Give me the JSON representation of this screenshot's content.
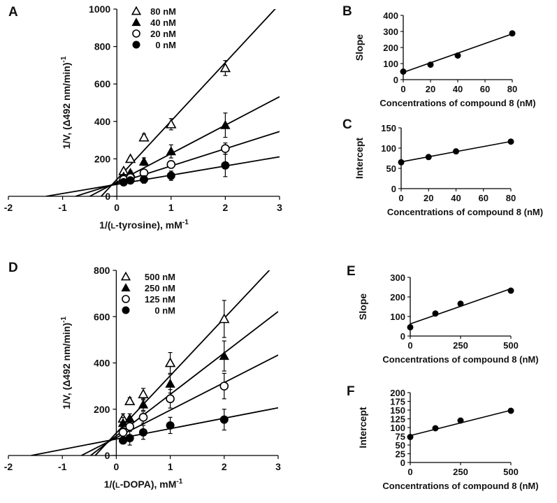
{
  "chart_data": [
    {
      "panel": "A",
      "type": "scatter",
      "xlabel": "1/(L-tyrosine), mM-1",
      "xlabel_parts": [
        "1/(",
        "L",
        "-tyrosine), mM",
        "-1"
      ],
      "ylabel": "1/V, (Δ492 nm/min)-1",
      "ylabel_parts": [
        "1/V, (Δ492 nm/min)",
        "-1"
      ],
      "xlim": [
        -2,
        3
      ],
      "ylim": [
        0,
        1000
      ],
      "xticks": [
        "-2",
        "-1",
        "0",
        "1",
        "2",
        "3"
      ],
      "yticks": [
        "0",
        "200",
        "400",
        "600",
        "800",
        "1000"
      ],
      "legend": [
        "80 nM",
        "40 nM",
        "20 nM",
        "0 nM"
      ],
      "series": [
        {
          "name": "80 nM",
          "marker": "open-triangle",
          "x": [
            0.125,
            0.25,
            0.5,
            1,
            2
          ],
          "y": [
            135,
            200,
            315,
            385,
            685
          ],
          "err": [
            10,
            10,
            18,
            30,
            40
          ],
          "fit": [
            90,
            312
          ]
        },
        {
          "name": "40 nM",
          "marker": "filled-triangle",
          "x": [
            0.125,
            0.25,
            0.5,
            1,
            2
          ],
          "y": [
            105,
            125,
            185,
            240,
            380
          ],
          "err": [
            10,
            10,
            20,
            35,
            65
          ],
          "fit": [
            76,
            152
          ]
        },
        {
          "name": "20 nM",
          "marker": "open-circle",
          "x": [
            0.125,
            0.25,
            0.5,
            1,
            2
          ],
          "y": [
            90,
            100,
            125,
            170,
            255
          ],
          "err": [
            8,
            8,
            12,
            20,
            30
          ],
          "fit": [
            70,
            92
          ]
        },
        {
          "name": "0 nM",
          "marker": "filled-circle",
          "x": [
            0.125,
            0.25,
            0.5,
            1,
            2
          ],
          "y": [
            75,
            85,
            90,
            110,
            165
          ],
          "err": [
            12,
            12,
            20,
            25,
            60
          ],
          "fit": [
            64,
            49
          ]
        }
      ]
    },
    {
      "panel": "B",
      "type": "scatter",
      "xlabel": "Concentrations of compound 8 (nM)",
      "ylabel": "Slope",
      "xlim": [
        0,
        80
      ],
      "ylim": [
        0,
        400
      ],
      "xticks": [
        "0",
        "20",
        "40",
        "60",
        "80"
      ],
      "yticks": [
        "0",
        "100",
        "200",
        "300",
        "400"
      ],
      "x": [
        0,
        20,
        40,
        80
      ],
      "y": [
        50,
        93,
        150,
        288
      ],
      "fit": [
        45,
        3
      ]
    },
    {
      "panel": "C",
      "type": "scatter",
      "xlabel": "Concentrations of compound 8  (nM)",
      "ylabel": "Intercept",
      "xlim": [
        0,
        80
      ],
      "ylim": [
        0,
        150
      ],
      "xticks": [
        "0",
        "20",
        "40",
        "60",
        "80"
      ],
      "yticks": [
        "0",
        "50",
        "100",
        "150"
      ],
      "x": [
        0,
        20,
        40,
        80
      ],
      "y": [
        65,
        78,
        92,
        116
      ],
      "fit": [
        66,
        0.63
      ]
    },
    {
      "panel": "D",
      "type": "scatter",
      "xlabel": "1/(L-DOPA), mM-1",
      "xlabel_parts": [
        "1/(",
        "L",
        "-DOPA), mM",
        "-1"
      ],
      "ylabel": "1/V, (Δ492 nm/min)-1",
      "ylabel_parts": [
        "1/V, (Δ492 nm/min)",
        "-1"
      ],
      "xlim": [
        -2,
        3
      ],
      "ylim": [
        0,
        800
      ],
      "xticks": [
        "-2",
        "-1",
        "0",
        "1",
        "2",
        "3"
      ],
      "yticks": [
        "0",
        "200",
        "400",
        "600",
        "800"
      ],
      "legend": [
        "500 nM",
        "250 nM",
        "125 nM",
        "0 nM"
      ],
      "series": [
        {
          "name": "500 nM",
          "marker": "open-triangle",
          "x": [
            0.125,
            0.25,
            0.5,
            1,
            2
          ],
          "y": [
            160,
            235,
            265,
            400,
            590
          ],
          "err": [
            20,
            15,
            25,
            45,
            80
          ],
          "fit": [
            97,
            248
          ]
        },
        {
          "name": "250 nM",
          "marker": "filled-triangle",
          "x": [
            0.125,
            0.25,
            0.5,
            1,
            2
          ],
          "y": [
            140,
            160,
            220,
            310,
            430
          ],
          "err": [
            25,
            20,
            25,
            40,
            65
          ],
          "fit": [
            85,
            179
          ]
        },
        {
          "name": "125 nM",
          "marker": "open-circle",
          "x": [
            0.125,
            0.25,
            0.5,
            1,
            2
          ],
          "y": [
            100,
            125,
            165,
            245,
            300
          ],
          "err": [
            20,
            20,
            25,
            40,
            55
          ],
          "fit": [
            77,
            119
          ]
        },
        {
          "name": "0 nM",
          "marker": "filled-circle",
          "x": [
            0.125,
            0.25,
            0.5,
            1,
            2
          ],
          "y": [
            65,
            75,
            100,
            130,
            155
          ],
          "err": [
            15,
            30,
            30,
            35,
            45
          ],
          "fit": [
            71,
            45
          ]
        }
      ]
    },
    {
      "panel": "E",
      "type": "scatter",
      "xlabel": "Concentrations of compound 8 (nM)",
      "ylabel": "Slope",
      "xlim": [
        0,
        500
      ],
      "ylim": [
        0,
        300
      ],
      "xticks": [
        "0",
        "250",
        "500"
      ],
      "yticks": [
        "0",
        "100",
        "200",
        "300"
      ],
      "x": [
        0,
        125,
        250,
        500
      ],
      "y": [
        45,
        115,
        165,
        232
      ],
      "fit": [
        62,
        0.36
      ]
    },
    {
      "panel": "F",
      "type": "scatter",
      "xlabel": "Concentrations of compound 8 (nM)",
      "ylabel": "Intercept",
      "xlim": [
        0,
        500
      ],
      "ylim": [
        0,
        200
      ],
      "xticks": [
        "0",
        "250",
        "500"
      ],
      "yticks": [
        "0",
        "25",
        "50",
        "75",
        "100",
        "125",
        "150",
        "175",
        "200"
      ],
      "x": [
        0,
        125,
        250,
        500
      ],
      "y": [
        73,
        98,
        120,
        148
      ],
      "fit": [
        77,
        0.145
      ]
    }
  ]
}
